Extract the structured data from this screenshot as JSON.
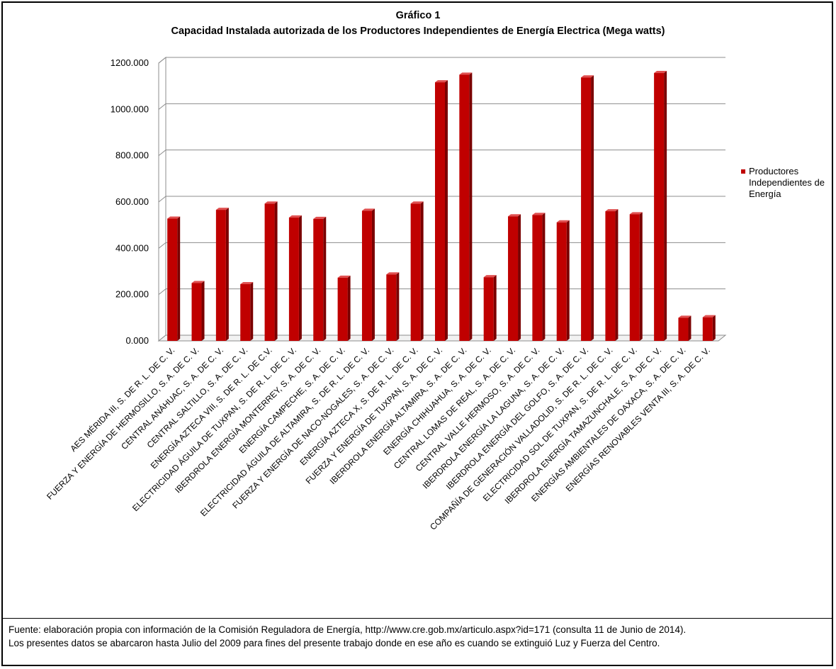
{
  "chart_data": {
    "type": "bar",
    "title": "Gráfico 1",
    "subtitle": "Capacidad Instalada autorizada de los Productores Independientes de Energía  Electrica (Mega watts)",
    "xlabel": "",
    "ylabel": "",
    "ylim": [
      0,
      1200
    ],
    "y_ticks": [
      "0.000",
      "200.000",
      "400.000",
      "600.000",
      "800.000",
      "1000.000",
      "1200.000"
    ],
    "grid": true,
    "three_d": true,
    "legend_position": "right",
    "categories": [
      "AES MÉRIDA III, S. DE R. L. DE C. V.",
      "FUERZA Y ENERGÍA DE HERMOSILLO, S. A. DE C. V.",
      "CENTRAL ANÁHUAC, S. A. DE C. V.",
      "CENTRAL SALTILLO, S. A. DE C. V.",
      "ENERGÍA AZTECA VIII, S. DE R. L. DE C.V.",
      "ELECTRICIDAD ÁGUILA DE TUXPAN, S. DE R. L. DE C. V.",
      "IBERDROLA ENERGÍA MONTERREY, S. A. DE C. V.",
      "ENERGÍA CAMPECHE, S. A. DE C. V.",
      "ELECTRICIDAD ÁGUILA DE ALTAMIRA, S. DE R. L. DE C. V.",
      "FUERZA Y ENERGÍA DE NACO-NOGALES, S. A. DE C. V.",
      "ENERGÍA AZTECA X, S. DE R. L. DE C. V.",
      "FUERZA Y ENERGÍA DE TUXPAN, S. A. DE C. V.",
      "IBERDROLA ENERGÍA ALTAMIRA, S. A. DE C. V.",
      "ENERGÍA CHIHUAHUA, S. A. DE C. V.",
      "CENTRAL LOMAS DE REAL, S. A. DE C. V.",
      "CENTRAL VALLE HERMOSO, S. A. DE C. V.",
      "IBERDROLA ENERGÍA LA LAGUNA, S. A. DE C. V.",
      "IBERDROLA ENERGÍA DEL GOLFO, S. A. DE C. V.",
      "COMPAÑÍA DE GENERACIÓN VALLADOLID, S. DE R. L. DE C. V.",
      "ELECTRICIDAD SOL DE TUXPAN, S. DE R. L. DE C. V.",
      "IBERDROLA ENERGÍA TAMAZUNCHALE, S. A. DE C. V.",
      "ENERGÍAS AMBIENTALES DE OAXACA, S. A. DE C. V.",
      "ENERGÍAS RENOVABLES VENTA III, S. A. DE C. V."
    ],
    "series": [
      {
        "name": "Productores Independientes de Energía",
        "color": "#c00000",
        "values": [
          528,
          250,
          566,
          245,
          593,
          533,
          527,
          273,
          562,
          287,
          593,
          1117,
          1150,
          275,
          538,
          544,
          512,
          1138,
          560,
          547,
          1157,
          100,
          102
        ]
      }
    ]
  },
  "footnote": {
    "line1": "Fuente: elaboración propia con información de la Comisión Reguladora de Energía, http://www.cre.gob.mx/articulo.aspx?id=171 (consulta 11 de Junio de 2014).",
    "line2": "Los  presentes datos se abarcaron hasta Julio del 2009 para fines del presente trabajo donde en ese año es cuando se extinguió Luz y Fuerza del Centro."
  }
}
